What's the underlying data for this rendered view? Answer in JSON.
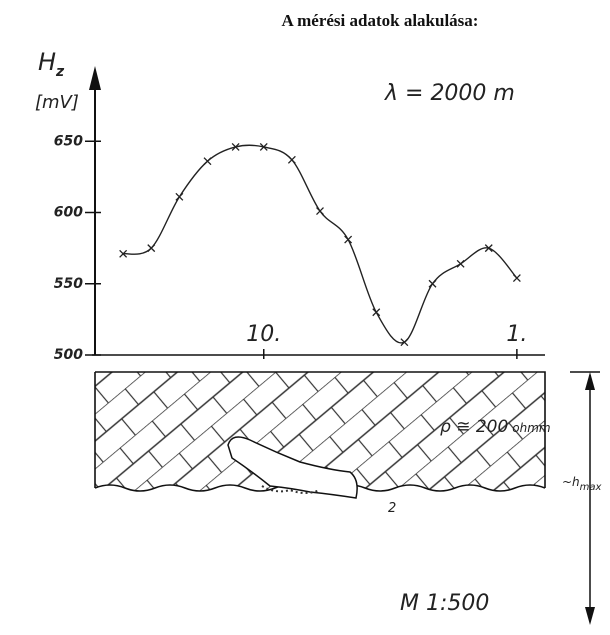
{
  "chart_data": {
    "type": "line",
    "title": "A mérési adatok alakulása:",
    "y_label": "H",
    "y_label_subscript": "z",
    "y_unit": "[mV]",
    "x": [
      15,
      14,
      13,
      12,
      11,
      10,
      9,
      8,
      7,
      6,
      5,
      4,
      3,
      2,
      1
    ],
    "series": [
      {
        "color": "#222222",
        "values": [
          571,
          575,
          611,
          636,
          646,
          646,
          637,
          601,
          581,
          530,
          509,
          550,
          564,
          575,
          554
        ]
      }
    ],
    "marker": "x",
    "xlim": [
      16,
      0
    ],
    "ylim": [
      500,
      700
    ],
    "xticks": [
      {
        "value": 10,
        "label": "10."
      },
      {
        "value": 1,
        "label": "1."
      }
    ],
    "yticks": [
      500,
      550,
      600,
      650
    ],
    "annotations": {
      "wavelength": "λ = 2000 m",
      "resistivity": "ρ ≅ 200",
      "resistivity_unit": "ohmm",
      "layer": "2",
      "depth": "~h",
      "depth_subscript": "max",
      "scale": "M 1:500"
    }
  }
}
